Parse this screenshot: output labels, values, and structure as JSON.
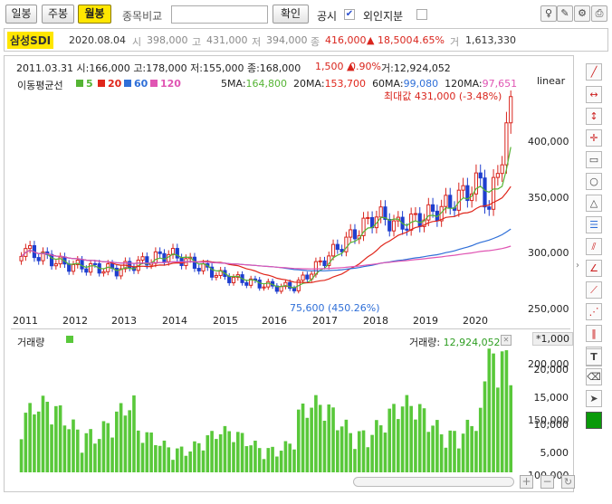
{
  "tabs": {
    "daily": "일봉",
    "weekly": "주봉",
    "monthly": "월봉"
  },
  "compare": {
    "label": "종목비교",
    "value": "",
    "confirm": "확인",
    "disclosure": "공시",
    "foreign": "외인지분"
  },
  "quote": {
    "name": "삼성SDI",
    "date": "2020.08.04",
    "open": "398,000",
    "high": "431,000",
    "low": "394,000",
    "price": "416,000",
    "change": "▲ 18,500",
    "rate": "4.65%",
    "volume": "1,613,330"
  },
  "legend": {
    "date": "2011.03.31",
    "open_l": "시:",
    "open": "166,000",
    "high_l": "고:",
    "high": "178,000",
    "low_l": "저:",
    "low": "155,000",
    "close_l": "종:",
    "close": "168,000",
    "change": "1,500",
    "arrow": "▲",
    "rate": "0.90%",
    "vol_l": "거:",
    "vol": "12,924,052"
  },
  "ma": {
    "title": "이동평균선",
    "p5": "5",
    "p20": "20",
    "p60": "60",
    "p120": "120",
    "ma5_l": "5MA:",
    "ma5": "164,800",
    "ma20_l": "20MA:",
    "ma20": "153,700",
    "ma60_l": "60MA:",
    "ma60": "99,080",
    "ma120_l": "120MA:",
    "ma120": "97,651"
  },
  "scale": "linear",
  "max_label": "최대값 431,000 (-3.48%)",
  "min_label": "75,600 (450.26%)",
  "y_ticks": [
    "400,000",
    "350,000",
    "300,000",
    "250,000",
    "200,000",
    "150,000",
    "100,000"
  ],
  "x_ticks": [
    "2011",
    "2012",
    "2013",
    "2014",
    "2015",
    "2016",
    "2017",
    "2018",
    "2019",
    "2020"
  ],
  "vol_panel": {
    "title": "거래량",
    "vol_l": "거래량:",
    "vol": "12,924,052",
    "unit": "*1,000",
    "ticks": [
      "20,000",
      "15,000",
      "10,000",
      "5,000"
    ]
  },
  "colors": {
    "up": "#d9251d",
    "down": "#1f3fcf",
    "ma5": "#55b434",
    "ma20": "#e0261b",
    "ma60": "#2f6fd8",
    "ma120": "#e055b3",
    "vol": "#59c83a"
  },
  "chart_data": {
    "type": "candlestick",
    "series": [
      {
        "name": "price",
        "x": [
          "2011-03",
          "2012-01",
          "2013-01",
          "2014-01",
          "2015-01",
          "2016-01",
          "2016-06",
          "2017-01",
          "2018-01",
          "2018-06",
          "2019-01",
          "2019-06",
          "2020-01",
          "2020-03",
          "2020-08"
        ],
        "close": [
          168000,
          140000,
          130000,
          160000,
          120000,
          100000,
          100000,
          150000,
          230000,
          210000,
          230000,
          250000,
          290000,
          240000,
          416000
        ]
      }
    ]
  }
}
